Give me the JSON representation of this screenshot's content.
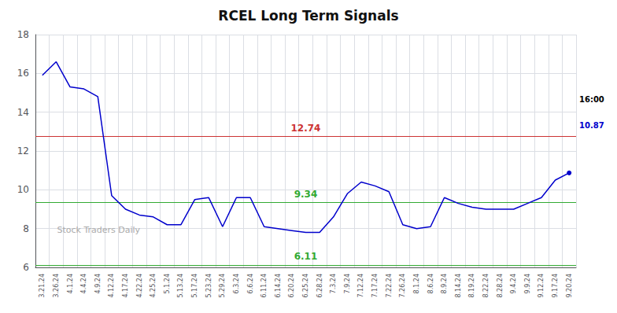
{
  "chart_data": {
    "type": "line",
    "title": "RCEL Long Term Signals",
    "categories": [
      "3.21.24",
      "3.26.24",
      "4.1.24",
      "4.4.24",
      "4.9.24",
      "4.12.24",
      "4.17.24",
      "4.22.24",
      "4.25.24",
      "5.1.24",
      "5.13.24",
      "5.17.24",
      "5.23.24",
      "5.29.24",
      "6.3.24",
      "6.6.24",
      "6.11.24",
      "6.14.24",
      "6.20.24",
      "6.25.24",
      "6.28.24",
      "7.3.24",
      "7.9.24",
      "7.12.24",
      "7.17.24",
      "7.22.24",
      "7.26.24",
      "8.1.24",
      "8.6.24",
      "8.9.24",
      "8.14.24",
      "8.19.24",
      "8.22.24",
      "8.28.24",
      "9.4.24",
      "9.9.24",
      "9.12.24",
      "9.17.24",
      "9.20.24"
    ],
    "values": [
      15.9,
      16.6,
      15.3,
      15.2,
      14.8,
      9.7,
      9.0,
      8.7,
      8.6,
      8.2,
      8.2,
      9.5,
      9.6,
      8.1,
      9.6,
      9.6,
      8.1,
      8.0,
      7.9,
      7.8,
      7.8,
      8.6,
      9.8,
      10.4,
      10.2,
      9.9,
      8.2,
      8.0,
      8.1,
      9.6,
      9.3,
      9.1,
      9.0,
      9.0,
      9.0,
      9.3,
      9.6,
      10.5,
      10.87
    ],
    "color": "#0000cc",
    "hlines": [
      {
        "value": 12.74,
        "color": "#cc3333"
      },
      {
        "value": 9.34,
        "color": "#33aa33"
      },
      {
        "value": 6.11,
        "color": "#33aa33"
      }
    ],
    "annotations": [
      {
        "text": "16:00",
        "color": "#000000"
      },
      {
        "text": "10.87",
        "color": "#0000cc"
      },
      {
        "text": "Stock Traders Daily",
        "color": "#aaaaaa"
      }
    ],
    "ylim": [
      6,
      18
    ],
    "yticks": [
      6,
      8,
      10,
      12,
      14,
      16,
      18
    ],
    "grid": true
  }
}
